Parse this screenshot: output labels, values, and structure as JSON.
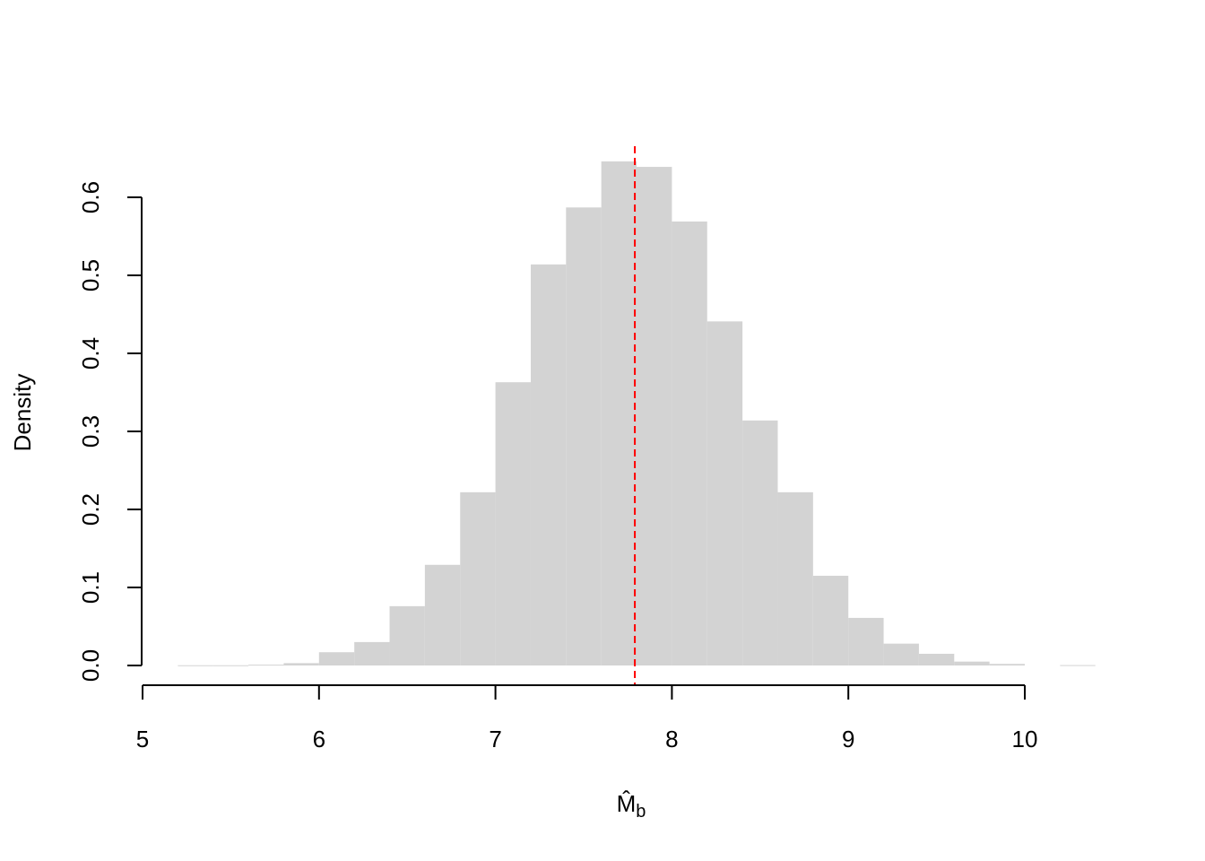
{
  "chart_data": {
    "type": "bar",
    "subtype": "histogram",
    "title": "",
    "xlabel": "M̂",
    "xlabel_subscript": "b",
    "ylabel": "Density",
    "xlim": [
      5,
      10.4
    ],
    "ylim": [
      0,
      0.65
    ],
    "x_ticks": [
      "5",
      "6",
      "7",
      "8",
      "9",
      "10"
    ],
    "y_ticks": [
      "0.0",
      "0.1",
      "0.2",
      "0.3",
      "0.4",
      "0.5",
      "0.6"
    ],
    "grid": false,
    "bar_color": "#d3d3d3",
    "bins": [
      {
        "start": 5.2,
        "end": 5.4,
        "density": 0.0003
      },
      {
        "start": 5.4,
        "end": 5.6,
        "density": 0.0003
      },
      {
        "start": 5.6,
        "end": 5.8,
        "density": 0.001
      },
      {
        "start": 5.8,
        "end": 6.0,
        "density": 0.003
      },
      {
        "start": 6.0,
        "end": 6.2,
        "density": 0.017
      },
      {
        "start": 6.2,
        "end": 6.4,
        "density": 0.03
      },
      {
        "start": 6.4,
        "end": 6.6,
        "density": 0.076
      },
      {
        "start": 6.6,
        "end": 6.8,
        "density": 0.129
      },
      {
        "start": 6.8,
        "end": 7.0,
        "density": 0.222
      },
      {
        "start": 7.0,
        "end": 7.2,
        "density": 0.363
      },
      {
        "start": 7.2,
        "end": 7.4,
        "density": 0.514
      },
      {
        "start": 7.4,
        "end": 7.6,
        "density": 0.587
      },
      {
        "start": 7.6,
        "end": 7.8,
        "density": 0.646
      },
      {
        "start": 7.8,
        "end": 8.0,
        "density": 0.639
      },
      {
        "start": 8.0,
        "end": 8.2,
        "density": 0.569
      },
      {
        "start": 8.2,
        "end": 8.4,
        "density": 0.441
      },
      {
        "start": 8.4,
        "end": 8.6,
        "density": 0.314
      },
      {
        "start": 8.6,
        "end": 8.8,
        "density": 0.222
      },
      {
        "start": 8.8,
        "end": 9.0,
        "density": 0.115
      },
      {
        "start": 9.0,
        "end": 9.2,
        "density": 0.061
      },
      {
        "start": 9.2,
        "end": 9.4,
        "density": 0.028
      },
      {
        "start": 9.4,
        "end": 9.6,
        "density": 0.015
      },
      {
        "start": 9.6,
        "end": 9.8,
        "density": 0.005
      },
      {
        "start": 9.8,
        "end": 10.0,
        "density": 0.002
      },
      {
        "start": 10.0,
        "end": 10.2,
        "density": 0.0
      },
      {
        "start": 10.2,
        "end": 10.4,
        "density": 0.0005
      }
    ],
    "reference_line": {
      "x": 7.79,
      "color": "#ff0000",
      "style": "dashed"
    }
  }
}
